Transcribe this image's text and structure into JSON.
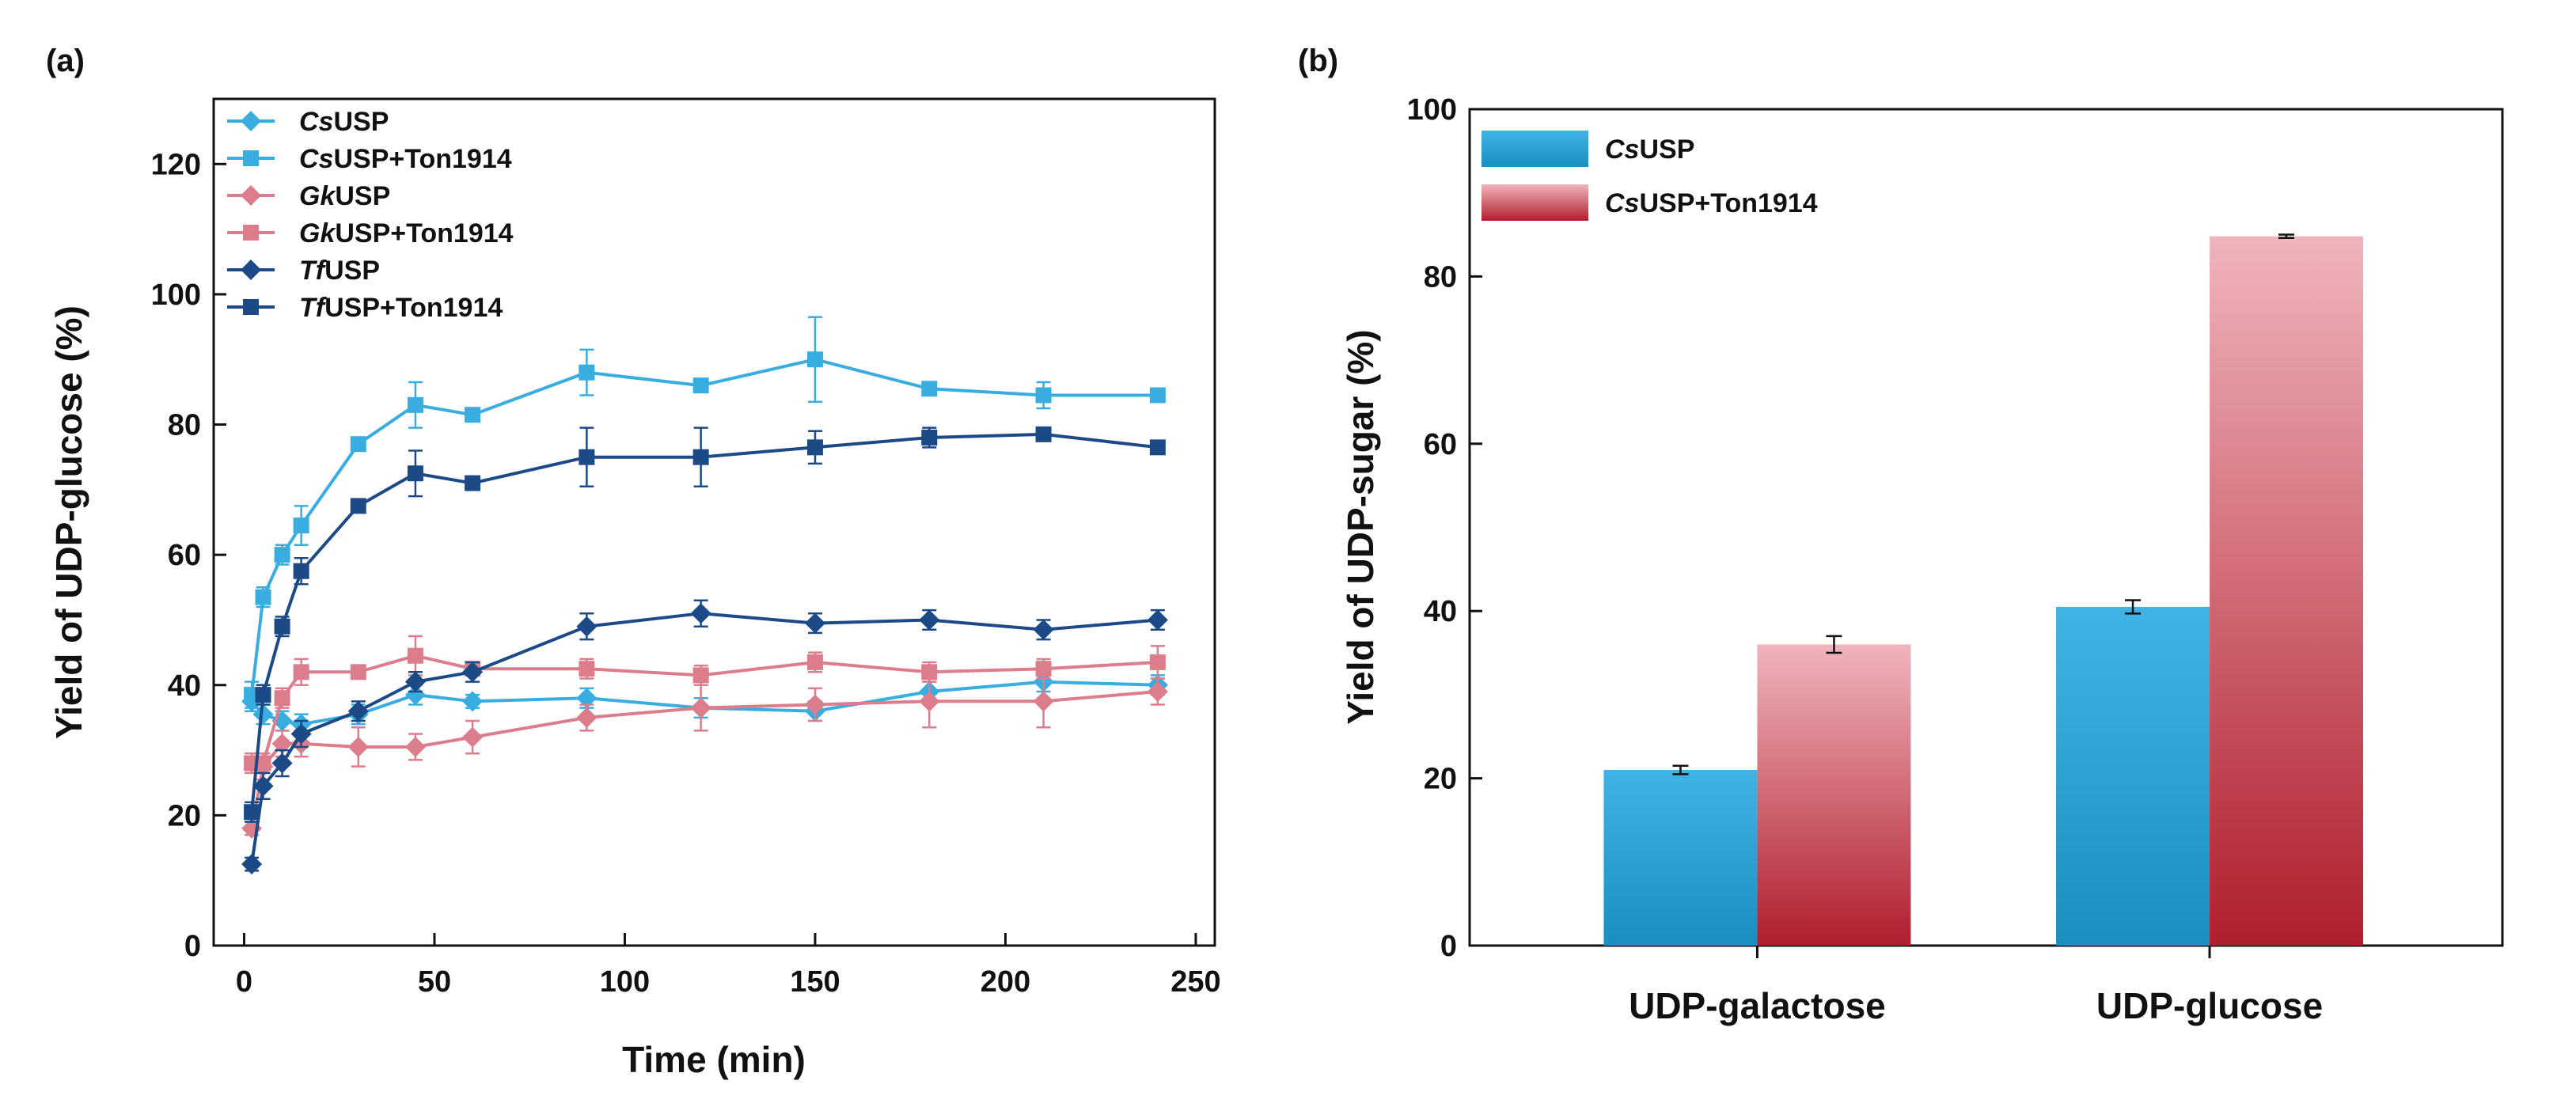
{
  "chart_data": [
    {
      "panel": "(a)",
      "type": "line",
      "xlabel": "Time (min)",
      "ylabel": "Yield of UDP-glucose (%)",
      "xlim": [
        -8,
        255
      ],
      "ylim": [
        0,
        130
      ],
      "xticks": [
        0,
        50,
        100,
        150,
        200,
        250
      ],
      "yticks": [
        0,
        20,
        40,
        60,
        80,
        100,
        120
      ],
      "legend_position": "top-left",
      "x": [
        2,
        5,
        10,
        15,
        30,
        45,
        60,
        90,
        120,
        150,
        180,
        210,
        240
      ],
      "series": [
        {
          "name": "CsUSP",
          "italic": "Cs",
          "rest": "USP",
          "marker": "diamond",
          "color": "#39ade0",
          "values": [
            37.5,
            35.5,
            34.5,
            34.0,
            35.5,
            38.5,
            37.5,
            38.0,
            36.5,
            36.0,
            39.0,
            40.5,
            40.0
          ],
          "errors": [
            1.5,
            1.5,
            1.5,
            1.5,
            1.5,
            1.5,
            1.0,
            1.5,
            1.5,
            1.5,
            1.5,
            1.5,
            1.5
          ]
        },
        {
          "name": "CsUSP+Ton1914",
          "italic": "Cs",
          "rest": "USP+Ton1914",
          "marker": "square",
          "color": "#39ade0",
          "values": [
            38.5,
            53.5,
            60.0,
            64.5,
            77.0,
            83.0,
            81.5,
            88.0,
            86.0,
            90.0,
            85.5,
            84.5,
            84.5
          ],
          "errors": [
            2.0,
            1.5,
            1.5,
            3.0,
            1.0,
            3.5,
            1.0,
            3.5,
            1.0,
            6.5,
            1.0,
            2.0,
            1.0
          ]
        },
        {
          "name": "GkUSP",
          "italic": "Gk",
          "rest": "USP",
          "marker": "diamond",
          "color": "#dc7d8c",
          "values": [
            18.0,
            27.5,
            31.0,
            31.0,
            30.5,
            30.5,
            32.0,
            35.0,
            36.5,
            37.0,
            37.5,
            37.5,
            39.0
          ],
          "errors": [
            1.0,
            2.0,
            2.0,
            2.0,
            3.0,
            2.0,
            2.5,
            2.0,
            3.5,
            2.5,
            4.0,
            4.0,
            2.0
          ]
        },
        {
          "name": "GkUSP+Ton1914",
          "italic": "Gk",
          "rest": "USP+Ton1914",
          "marker": "square",
          "color": "#dc7d8c",
          "values": [
            28.0,
            28.0,
            38.0,
            42.0,
            42.0,
            44.5,
            42.5,
            42.5,
            41.5,
            43.5,
            42.0,
            42.5,
            43.5
          ],
          "errors": [
            1.5,
            1.5,
            1.5,
            2.0,
            1.0,
            3.0,
            1.0,
            1.5,
            1.5,
            1.5,
            1.5,
            1.5,
            2.5
          ]
        },
        {
          "name": "TfUSP",
          "italic": "Tf",
          "rest": "USP",
          "marker": "diamond",
          "color": "#1c4a87",
          "values": [
            12.5,
            24.5,
            28.0,
            32.5,
            36.0,
            40.5,
            42.0,
            49.0,
            51.0,
            49.5,
            50.0,
            48.5,
            50.0
          ],
          "errors": [
            1.0,
            2.0,
            2.0,
            2.0,
            1.5,
            1.5,
            1.5,
            2.0,
            2.0,
            1.5,
            1.5,
            1.5,
            1.5
          ]
        },
        {
          "name": "TfUSP+Ton1914",
          "italic": "Tf",
          "rest": "USP+Ton1914",
          "marker": "square",
          "color": "#1c4a87",
          "values": [
            20.5,
            38.5,
            49.0,
            57.5,
            67.5,
            72.5,
            71.0,
            75.0,
            75.0,
            76.5,
            78.0,
            78.5,
            76.5
          ],
          "errors": [
            1.5,
            1.5,
            1.5,
            2.0,
            1.0,
            3.5,
            1.0,
            4.5,
            4.5,
            2.5,
            1.5,
            1.0,
            1.0
          ]
        }
      ]
    },
    {
      "panel": "(b)",
      "type": "bar",
      "xlabel": "",
      "ylabel": "Yield of UDP-sugar (%)",
      "ylim": [
        0,
        100
      ],
      "yticks": [
        0,
        20,
        40,
        60,
        80,
        100
      ],
      "legend_position": "top-left",
      "categories": [
        "UDP-galactose",
        "UDP-glucose"
      ],
      "series": [
        {
          "name": "CsUSP",
          "italic": "Cs",
          "rest": "USP",
          "color_top": "#41b2e4",
          "color_bottom": "#1a8fc0",
          "values": [
            21.0,
            40.5
          ],
          "errors": [
            0.5,
            0.8
          ]
        },
        {
          "name": "CsUSP+Ton1914",
          "italic": "Cs",
          "rest": "USP+Ton1914",
          "color_top": "#f0b4bc",
          "color_bottom": "#b01e2e",
          "values": [
            36.0,
            84.8
          ],
          "errors": [
            1.0,
            0.2
          ]
        }
      ]
    }
  ]
}
